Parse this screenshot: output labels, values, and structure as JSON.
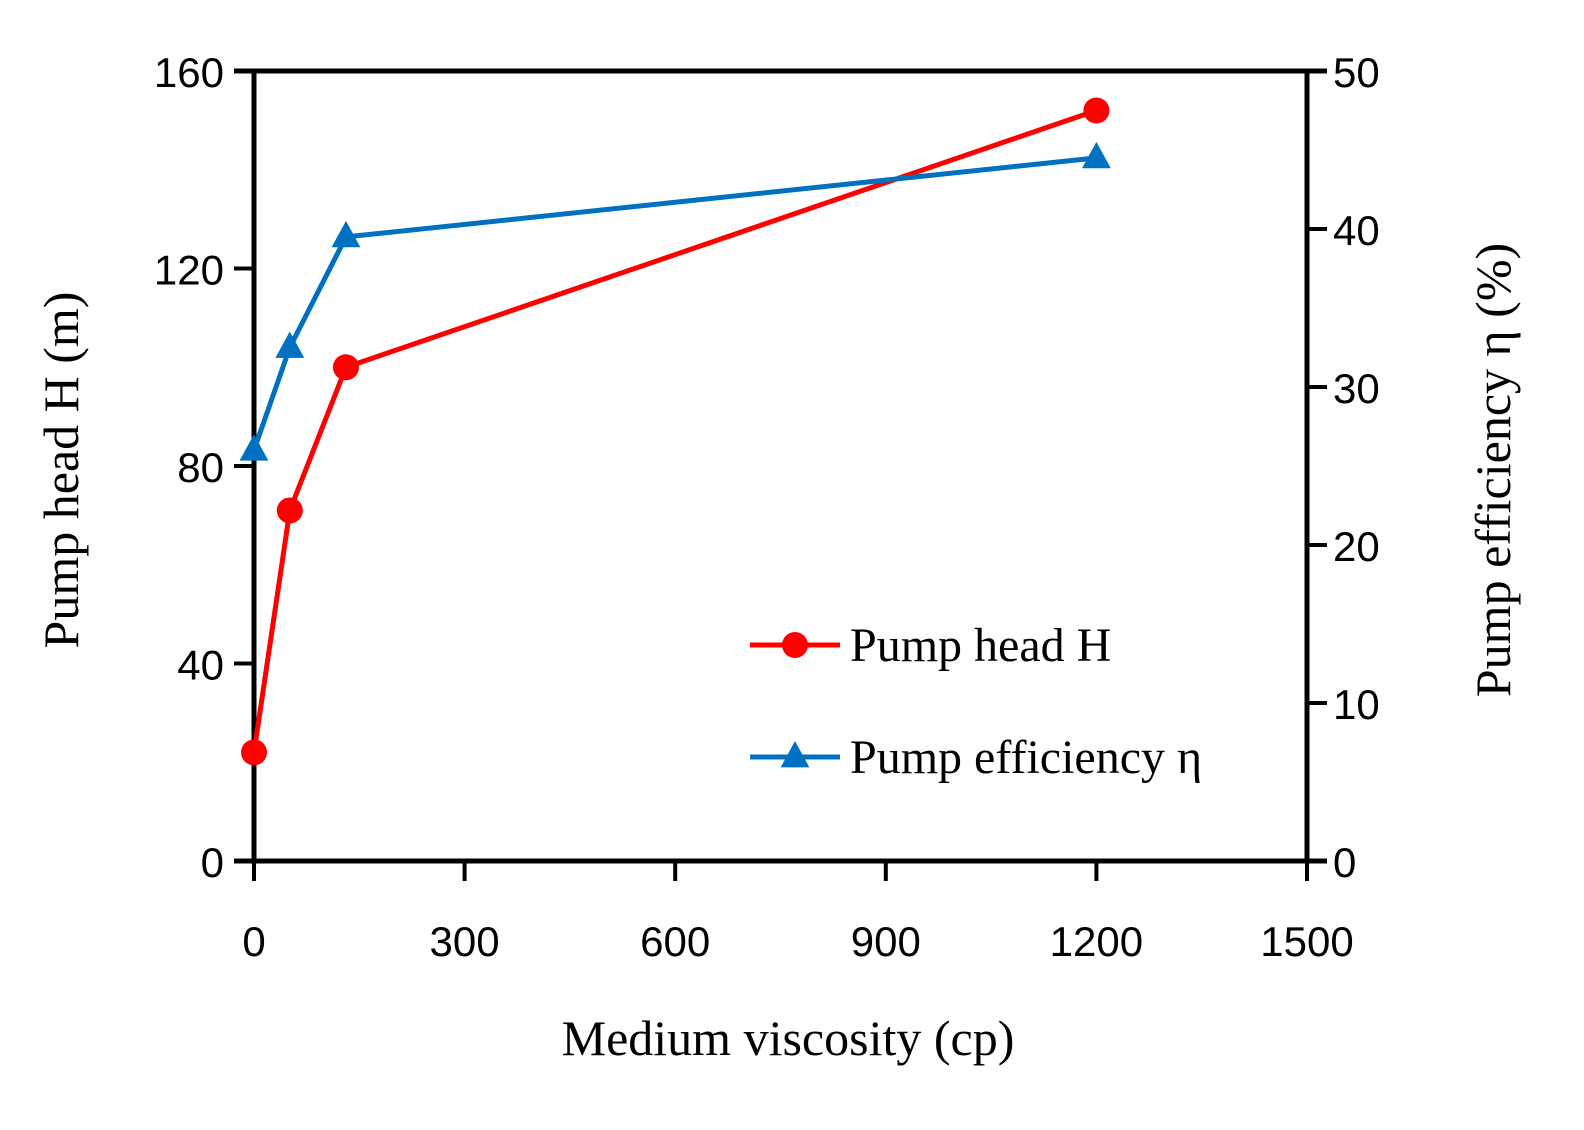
{
  "chart_data": {
    "type": "line",
    "xlabel": "Medium viscosity (cp)",
    "ylabel": "Pump head H (m)",
    "y2label": "Pump efficiency η (%)",
    "xlim": [
      0,
      1500
    ],
    "ylim": [
      0,
      160
    ],
    "y2lim": [
      0,
      50
    ],
    "xticks": [
      "0",
      "300",
      "600",
      "900",
      "1200",
      "1500"
    ],
    "yticks": [
      "0",
      "40",
      "80",
      "120",
      "160"
    ],
    "y2ticks": [
      "0",
      "10",
      "20",
      "30",
      "40",
      "50"
    ],
    "grid": false,
    "legend_position": "bottom-right",
    "series": [
      {
        "name": "Pump head H",
        "axis": "left",
        "marker": "circle",
        "color": "#ff0000",
        "x": [
          0,
          51,
          131,
          1200
        ],
        "values": [
          22,
          71,
          100,
          152
        ]
      },
      {
        "name": "Pump efficiency η",
        "axis": "right",
        "marker": "triangle",
        "color": "#0070c0",
        "x": [
          0,
          51,
          131,
          1200
        ],
        "values": [
          26,
          32.5,
          39.5,
          44.5
        ]
      }
    ]
  }
}
